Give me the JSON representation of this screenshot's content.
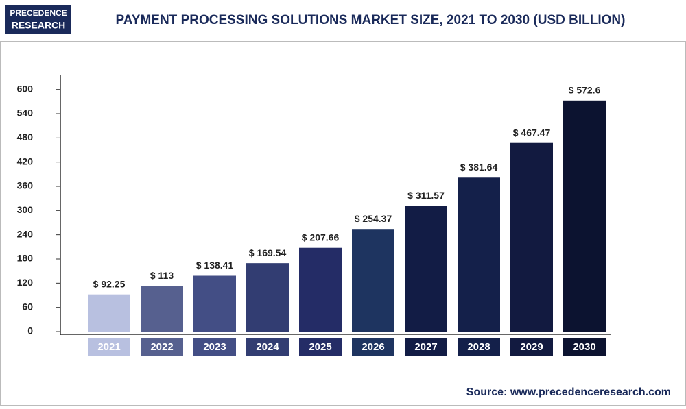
{
  "chart_data": {
    "type": "bar",
    "logo": [
      "PRECEDENCE",
      "RESEARCH"
    ],
    "title": "PAYMENT PROCESSING SOLUTIONS MARKET SIZE, 2021 TO 2030 (USD BILLION)",
    "categories": [
      "2021",
      "2022",
      "2023",
      "2024",
      "2025",
      "2026",
      "2027",
      "2028",
      "2029",
      "2030"
    ],
    "values": [
      92.25,
      113,
      138.41,
      169.54,
      207.66,
      254.37,
      311.57,
      381.64,
      467.47,
      572.6
    ],
    "value_labels": [
      "$ 92.25",
      "$ 113",
      "$ 138.41",
      "$ 169.54",
      "$ 207.66",
      "$ 254.37",
      "$ 311.57",
      "$ 381.64",
      "$ 467.47",
      "$ 572.6"
    ],
    "colors": [
      "#b8c0e0",
      "#56608f",
      "#434e85",
      "#323d72",
      "#242c66",
      "#1e3460",
      "#121c45",
      "#14204a",
      "#121a40",
      "#0c1330"
    ],
    "ylim": [
      0,
      630
    ],
    "yticks": [
      0,
      60,
      120,
      180,
      240,
      300,
      360,
      420,
      480,
      540,
      600
    ],
    "source": "Source: www.precedenceresearch.com"
  }
}
